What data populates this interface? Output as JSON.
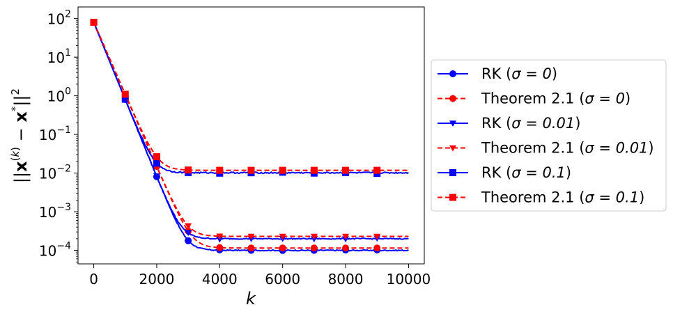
{
  "chart_data": {
    "type": "line",
    "xlabel": "k",
    "ylabel": "||x(k) − x*||²",
    "y_scale": "log",
    "xlim": [
      -500,
      10500
    ],
    "ylim_exp": [
      -4.35,
      2.3
    ],
    "xticks": [
      0,
      2000,
      4000,
      6000,
      8000,
      10000
    ],
    "xtick_labels": [
      "0",
      "2000",
      "4000",
      "6000",
      "8000",
      "10000"
    ],
    "yticks_exp": [
      -4,
      -3,
      -2,
      -1,
      0,
      1,
      2
    ],
    "ytick_labels": [
      {
        "base": "10",
        "exp": "−4"
      },
      {
        "base": "10",
        "exp": "−3"
      },
      {
        "base": "10",
        "exp": "−2"
      },
      {
        "base": "10",
        "exp": "−1"
      },
      {
        "base": "10",
        "exp": "0"
      },
      {
        "base": "10",
        "exp": "1"
      },
      {
        "base": "10",
        "exp": "2"
      }
    ],
    "legend_position": "outside-right",
    "grid": false,
    "series": [
      {
        "name": "RK (σ = 0)",
        "legend_main": "RK (",
        "legend_sigma": "σ = 0",
        "legend_tail": ")",
        "color": "#0000ff",
        "dash": false,
        "marker": "circle",
        "y0": 80,
        "floor": 0.0001,
        "rate": 4.6,
        "noise": 0.03
      },
      {
        "name": "Theorem 2.1 (σ = 0)",
        "legend_main": "Theorem 2.1 (",
        "legend_sigma": "σ = 0",
        "legend_tail": ")",
        "color": "#ff0000",
        "dash": true,
        "marker": "circle",
        "y0": 80,
        "floor": 0.000115,
        "rate": 4.3,
        "noise": 0
      },
      {
        "name": "RK (σ = 0.01)",
        "legend_main": "RK (",
        "legend_sigma": "σ = 0.01",
        "legend_tail": ")",
        "color": "#0000ff",
        "dash": false,
        "marker": "triangle-down",
        "y0": 80,
        "floor": 0.0002,
        "rate": 4.6,
        "noise": 0.03
      },
      {
        "name": "Theorem 2.1 (σ = 0.01)",
        "legend_main": "Theorem 2.1 (",
        "legend_sigma": "σ = 0.01",
        "legend_tail": ")",
        "color": "#ff0000",
        "dash": true,
        "marker": "triangle-down",
        "y0": 80,
        "floor": 0.00023,
        "rate": 4.3,
        "noise": 0
      },
      {
        "name": "RK (σ = 0.1)",
        "legend_main": "RK (",
        "legend_sigma": "σ = 0.1",
        "legend_tail": ")",
        "color": "#0000ff",
        "dash": false,
        "marker": "square",
        "y0": 80,
        "floor": 0.0102,
        "rate": 4.6,
        "noise": 0.04
      },
      {
        "name": "Theorem 2.1 (σ = 0.1)",
        "legend_main": "Theorem 2.1 (",
        "legend_sigma": "σ = 0.1",
        "legend_tail": ")",
        "color": "#ff0000",
        "dash": true,
        "marker": "square",
        "y0": 80,
        "floor": 0.0118,
        "rate": 4.3,
        "noise": 0
      }
    ],
    "marker_x": [
      0,
      1000,
      2000,
      3000,
      4000,
      5000,
      6000,
      7000,
      8000,
      9000
    ]
  }
}
